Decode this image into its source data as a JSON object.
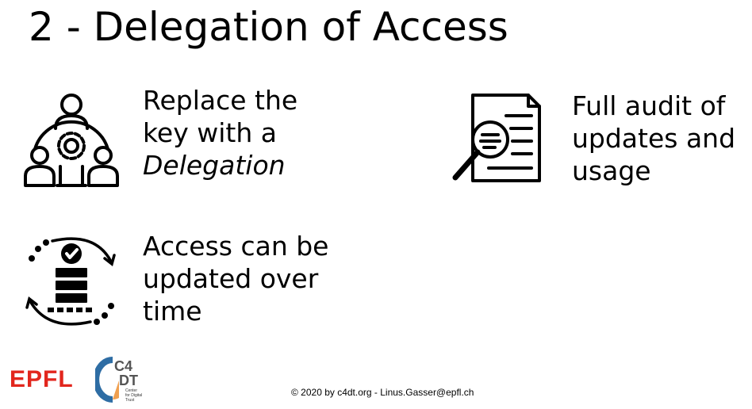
{
  "slide": {
    "title": "2 - Delegation of Access",
    "bullets": [
      {
        "lines": [
          "Replace the",
          "key with a"
        ],
        "italic_line": "Delegation",
        "icon": "team-gear-icon"
      },
      {
        "lines": [
          "Full audit of",
          "updates and",
          "usage"
        ],
        "icon": "document-magnifier-icon"
      },
      {
        "lines": [
          "Access can be",
          "updated over",
          "time"
        ],
        "icon": "server-check-cycle-icon"
      }
    ]
  },
  "footer": {
    "copyright": "© 2020 by c4dt.org - Linus.Gasser@epfl.ch",
    "logos": {
      "epfl": "EPFL",
      "c4dt": "C4DT",
      "c4dt_tagline": [
        "Center",
        "for Digital",
        "Trust"
      ]
    }
  },
  "colors": {
    "epfl_red": "#e2261d",
    "c4dt_blue": "#2e6da4",
    "c4dt_orange": "#f0a050",
    "text": "#000000"
  }
}
